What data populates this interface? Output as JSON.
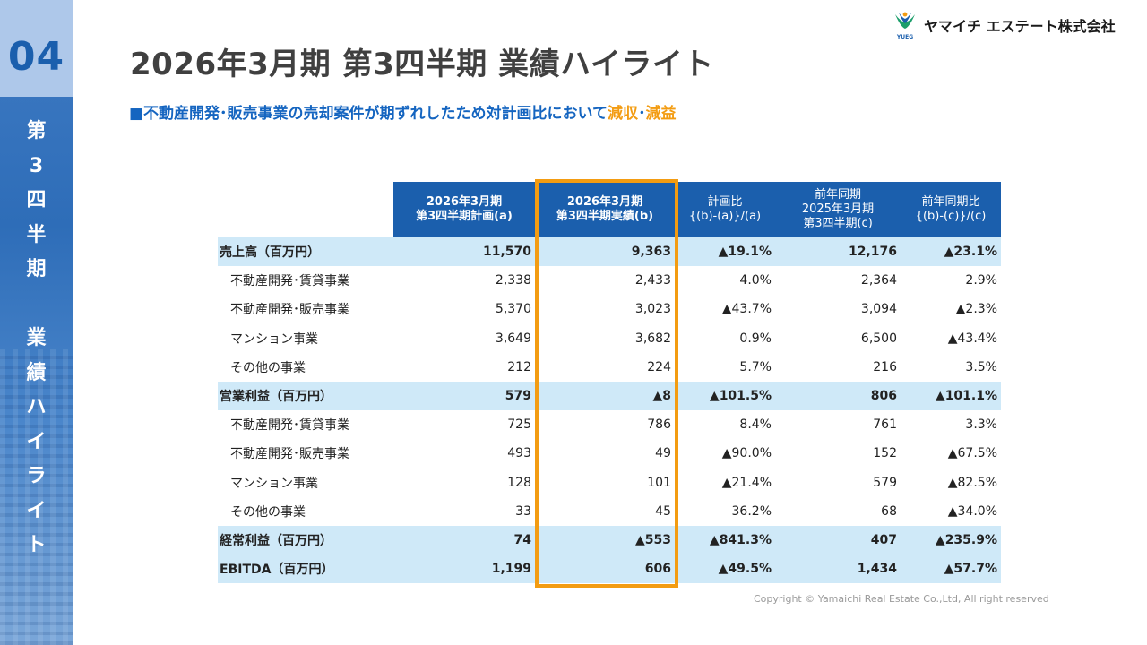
{
  "section": {
    "number": "04",
    "vertical_label_1": [
      "第",
      "3",
      "四",
      "半",
      "期"
    ],
    "vertical_label_2": [
      "業",
      "績",
      "ハ",
      "イ",
      "ラ",
      "イ",
      "ト"
    ]
  },
  "logo": {
    "company": "ヤマイチ エステート株式会社",
    "mark_text": "YUEG"
  },
  "title": "2026年3月期 第3四半期   業績ハイライト",
  "subtitle": {
    "lead": "■不動産開発･販売事業の売却案件が期ずれしたため対計画比において",
    "hl1": "減収",
    "sep": "･",
    "hl2": "減益"
  },
  "table": {
    "headers": [
      [
        "2026年3月期",
        "第3四半期計画(a)"
      ],
      [
        "2026年3月期",
        "第3四半期実績(b)"
      ],
      [
        "計画比",
        "{(b)-(a)}/(a)"
      ],
      [
        "前年同期",
        "2025年3月期",
        "第3四半期(c)"
      ],
      [
        "前年同期比",
        "{(b)-(c)}/(c)"
      ]
    ],
    "rows": [
      {
        "label": "売上高（百万円）",
        "major": true,
        "cells": [
          "11,570",
          "9,363",
          "▲19.1%",
          "12,176",
          "▲23.1%"
        ]
      },
      {
        "label": "不動産開発･賃貸事業",
        "major": false,
        "cells": [
          "2,338",
          "2,433",
          "4.0%",
          "2,364",
          "2.9%"
        ]
      },
      {
        "label": "不動産開発･販売事業",
        "major": false,
        "cells": [
          "5,370",
          "3,023",
          "▲43.7%",
          "3,094",
          "▲2.3%"
        ]
      },
      {
        "label": "マンション事業",
        "major": false,
        "cells": [
          "3,649",
          "3,682",
          "0.9%",
          "6,500",
          "▲43.4%"
        ]
      },
      {
        "label": "その他の事業",
        "major": false,
        "cells": [
          "212",
          "224",
          "5.7%",
          "216",
          "3.5%"
        ]
      },
      {
        "label": "営業利益（百万円）",
        "major": true,
        "cells": [
          "579",
          "▲8",
          "▲101.5%",
          "806",
          "▲101.1%"
        ]
      },
      {
        "label": "不動産開発･賃貸事業",
        "major": false,
        "cells": [
          "725",
          "786",
          "8.4%",
          "761",
          "3.3%"
        ]
      },
      {
        "label": "不動産開発･販売事業",
        "major": false,
        "cells": [
          "493",
          "49",
          "▲90.0%",
          "152",
          "▲67.5%"
        ]
      },
      {
        "label": "マンション事業",
        "major": false,
        "cells": [
          "128",
          "101",
          "▲21.4%",
          "579",
          "▲82.5%"
        ]
      },
      {
        "label": "その他の事業",
        "major": false,
        "cells": [
          "33",
          "45",
          "36.2%",
          "68",
          "▲34.0%"
        ]
      },
      {
        "label": "経常利益（百万円）",
        "major": true,
        "cells": [
          "74",
          "▲553",
          "▲841.3%",
          "407",
          "▲235.9%"
        ]
      },
      {
        "label": "EBITDA（百万円）",
        "major": true,
        "cells": [
          "1,199",
          "606",
          "▲49.5%",
          "1,434",
          "▲57.7%"
        ]
      }
    ]
  },
  "colors": {
    "header_blue": "#1b5fad",
    "major_row": "#cfe9f8",
    "highlight": "#f39c12",
    "subtitle": "#1565c0"
  },
  "copyright": "Copyright © Yamaichi Real Estate Co.,Ltd, All right reserved"
}
